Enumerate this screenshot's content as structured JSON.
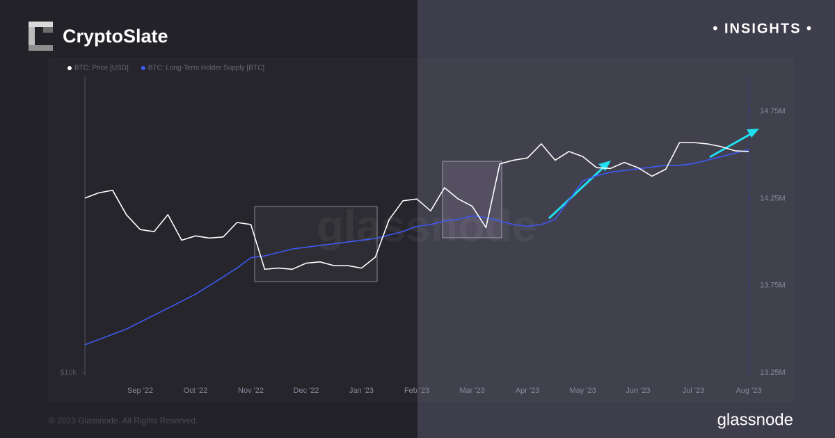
{
  "brand": "CryptoSlate",
  "badge": "• INSIGHTS •",
  "footer": "© 2023 Glassnode. All Rights Reserved.",
  "logo": "glassnode",
  "watermark": "glassnode",
  "chart_data": {
    "type": "line",
    "categories": [
      null,
      null,
      null,
      null,
      "Sep '22",
      null,
      null,
      null,
      "Oct '22",
      null,
      null,
      null,
      "Nov '22",
      null,
      null,
      null,
      "Dec '22",
      null,
      null,
      null,
      "Jan '23",
      null,
      null,
      null,
      "Feb '23",
      null,
      null,
      null,
      "Mar '23",
      null,
      null,
      null,
      "Apr '23",
      null,
      null,
      null,
      "May '23",
      null,
      null,
      null,
      "Jun '23",
      null,
      null,
      null,
      "Jul '23",
      null,
      null,
      null,
      "Aug '23"
    ],
    "series": [
      {
        "name": "BTC: Price [USD]",
        "color": "#ffffff",
        "axis": "y",
        "values": [
          23300,
          23900,
          24200,
          21500,
          20000,
          19800,
          21500,
          19000,
          19400,
          19200,
          19300,
          20700,
          20500,
          16500,
          16600,
          16500,
          17000,
          17100,
          16800,
          16800,
          16600,
          17500,
          21000,
          23000,
          23200,
          21900,
          24500,
          23200,
          22400,
          20200,
          27500,
          28000,
          28300,
          30300,
          28000,
          29200,
          28500,
          27000,
          26900,
          27700,
          27000,
          25900,
          26800,
          30500,
          30500,
          30300,
          29900,
          29300,
          29200
        ]
      },
      {
        "name": "BTC: Long-Term Holder Supply [BTC]",
        "color": "#3d5af1",
        "axis": "y2",
        "values": [
          13410000,
          13440000,
          13470000,
          13500000,
          13540000,
          13580000,
          13620000,
          13660000,
          13700000,
          13750000,
          13800000,
          13850000,
          13910000,
          13920000,
          13940000,
          13960000,
          13970000,
          13980000,
          13990000,
          14000000,
          14010000,
          14020000,
          14040000,
          14060000,
          14090000,
          14100000,
          14120000,
          14130000,
          14150000,
          14140000,
          14120000,
          14100000,
          14090000,
          14100000,
          14130000,
          14240000,
          14350000,
          14380000,
          14400000,
          14410000,
          14420000,
          14430000,
          14440000,
          14440000,
          14450000,
          14470000,
          14490000,
          14510000,
          14530000
        ]
      }
    ],
    "yscale": "log",
    "ylim": [
      10000,
      42000
    ],
    "yticks": [
      {
        "value": 10000,
        "label": "$10k"
      }
    ],
    "y2lim": [
      13250000,
      14950000
    ],
    "y2ticks": [
      {
        "value": 13250000,
        "label": "13.25M"
      },
      {
        "value": 13750000,
        "label": "13.75M"
      },
      {
        "value": 14250000,
        "label": "14.25M"
      },
      {
        "value": 14750000,
        "label": "14.75M"
      }
    ]
  }
}
